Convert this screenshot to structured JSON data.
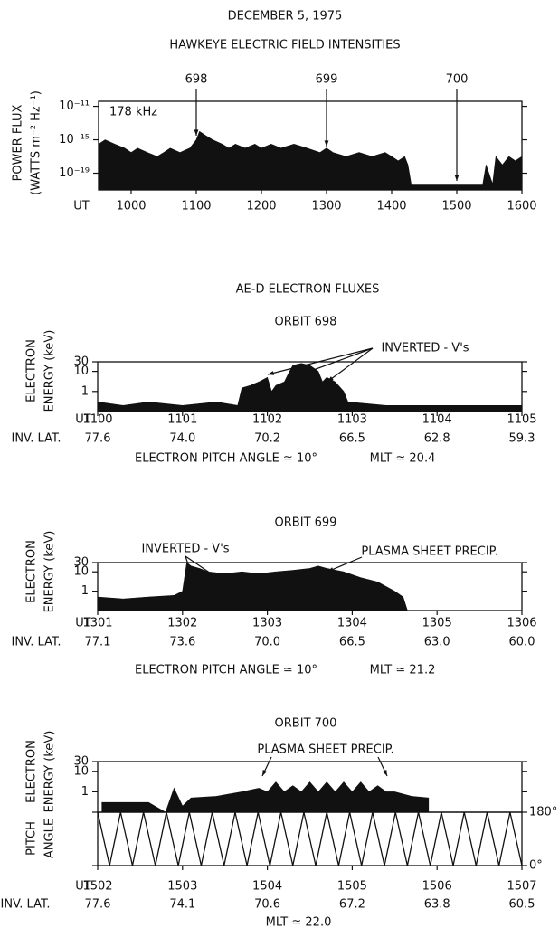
{
  "title": "DECEMBER 5, 1975",
  "chart_data": [
    {
      "type": "area",
      "title": "HAWKEYE ELECTRIC FIELD INTENSITIES",
      "inset_label": "178 kHz",
      "ylabel": [
        "POWER FLUX",
        "(WATTS m⁻² Hz⁻¹)"
      ],
      "xlabel": "UT",
      "log_y": true,
      "color": "#111111",
      "markers": [
        {
          "orbit": 698,
          "x": 1100
        },
        {
          "orbit": 699,
          "x": 1300
        },
        {
          "orbit": 700,
          "x": 1500
        }
      ],
      "xlim": [
        950,
        1600
      ],
      "xticks": [
        1000,
        1100,
        1200,
        1300,
        1400,
        1500,
        1600
      ],
      "ylim": [
        1e-21,
        4e-11
      ],
      "yticks": [
        {
          "value": 1e-19,
          "label": "10⁻¹⁹"
        },
        {
          "value": 1e-15,
          "label": "10⁻¹⁵"
        },
        {
          "value": 1e-11,
          "label": "10⁻¹¹"
        }
      ],
      "x": [
        950,
        960,
        975,
        990,
        1000,
        1010,
        1025,
        1040,
        1050,
        1060,
        1075,
        1090,
        1100,
        1105,
        1115,
        1125,
        1140,
        1150,
        1160,
        1175,
        1190,
        1200,
        1215,
        1230,
        1250,
        1270,
        1290,
        1300,
        1310,
        1330,
        1350,
        1370,
        1390,
        1400,
        1410,
        1420,
        1425,
        1430,
        1450,
        1500,
        1540,
        1545,
        1555,
        1560,
        1570,
        1580,
        1590,
        1600
      ],
      "values": [
        3e-16,
        1e-15,
        3e-16,
        1e-16,
        3e-17,
        1e-16,
        3e-17,
        1e-17,
        3e-17,
        1e-16,
        3e-17,
        1e-16,
        1e-15,
        1e-14,
        3e-15,
        1e-15,
        3e-16,
        1e-16,
        3e-16,
        1e-16,
        3e-16,
        1e-16,
        3e-16,
        1e-16,
        3e-16,
        1e-16,
        3e-17,
        1e-16,
        3e-17,
        1e-17,
        3e-17,
        1e-17,
        3e-17,
        1e-17,
        3e-18,
        1e-17,
        1e-18,
        5e-21,
        5e-21,
        5e-21,
        5e-21,
        1e-18,
        5e-21,
        1e-17,
        1e-18,
        1e-17,
        3e-18,
        1e-17
      ]
    },
    {
      "type": "area",
      "section_title": "AE-D ELECTRON FLUXES",
      "title": "ORBIT 698",
      "ylabel": [
        "ELECTRON",
        "ENERGY (keV)"
      ],
      "xlabel": "UT",
      "x2label": "INV. LAT.",
      "log_y": true,
      "color": "#111111",
      "annotations": [
        "INVERTED - V's"
      ],
      "notes": [
        "ELECTRON PITCH ANGLE ≃ 10°",
        "MLT ≃ 20.4"
      ],
      "xlim": [
        1100,
        1105
      ],
      "xticks": [
        1100,
        1101,
        1102,
        1103,
        1104,
        1105
      ],
      "x2_labels": [
        "77.6",
        "74.0",
        "70.2",
        "66.5",
        "62.8",
        "59.3"
      ],
      "ylim": [
        0.1,
        30
      ],
      "yticks": [
        1,
        10,
        30
      ],
      "x": [
        1100,
        1100.3,
        1100.6,
        1101,
        1101.4,
        1101.65,
        1101.7,
        1101.8,
        1101.9,
        1102,
        1102.05,
        1102.1,
        1102.2,
        1102.25,
        1102.3,
        1102.4,
        1102.5,
        1102.6,
        1102.65,
        1102.7,
        1102.8,
        1102.9,
        1102.95,
        1103.4,
        1103.8,
        1104.2,
        1104.6,
        1105
      ],
      "values": [
        0.3,
        0.2,
        0.3,
        0.2,
        0.3,
        0.2,
        1.5,
        2,
        3,
        5,
        1,
        2,
        3,
        8,
        20,
        25,
        20,
        10,
        3,
        5,
        3,
        1,
        0.3,
        0.2,
        0.2,
        0.2,
        0.2,
        0.2
      ]
    },
    {
      "type": "area",
      "title": "ORBIT 699",
      "ylabel": [
        "ELECTRON",
        "ENERGY (keV)"
      ],
      "xlabel": "UT",
      "x2label": "INV. LAT.",
      "log_y": true,
      "color": "#111111",
      "annotations": [
        "INVERTED - V's",
        "PLASMA SHEET PRECIP."
      ],
      "notes": [
        "ELECTRON PITCH ANGLE ≃ 10°",
        "MLT ≃ 21.2"
      ],
      "xlim": [
        1301,
        1306
      ],
      "xticks": [
        1301,
        1302,
        1303,
        1304,
        1305,
        1306
      ],
      "x2_labels": [
        "77.1",
        "73.6",
        "70.0",
        "66.5",
        "63.0",
        "60.0"
      ],
      "ylim": [
        0.1,
        30
      ],
      "yticks": [
        1,
        10,
        30
      ],
      "x": [
        1301,
        1301.3,
        1301.6,
        1301.9,
        1302,
        1302.05,
        1302.1,
        1302.2,
        1302.3,
        1302.5,
        1302.7,
        1302.9,
        1303.1,
        1303.3,
        1303.5,
        1303.6,
        1303.7,
        1303.9,
        1304.1,
        1304.3,
        1304.5,
        1304.6,
        1304.65
      ],
      "values": [
        0.5,
        0.4,
        0.5,
        0.6,
        1,
        30,
        20,
        15,
        10,
        8,
        10,
        8,
        10,
        12,
        15,
        20,
        15,
        10,
        5,
        3,
        1,
        0.5,
        0.1
      ]
    },
    {
      "type": "area",
      "title": "ORBIT 700",
      "ylabel": [
        "ELECTRON",
        "ENERGY (keV)"
      ],
      "log_y": true,
      "color": "#111111",
      "annotations": [
        "PLASMA SHEET PRECIP."
      ],
      "xlim": [
        1502,
        1507
      ],
      "ylim": [
        0.1,
        30
      ],
      "yticks": [
        1,
        10,
        30
      ],
      "x": [
        1502.05,
        1502.3,
        1502.6,
        1502.8,
        1502.9,
        1503.0,
        1503.1,
        1503.4,
        1503.7,
        1503.9,
        1504.0,
        1504.1,
        1504.2,
        1504.3,
        1504.4,
        1504.5,
        1504.6,
        1504.7,
        1504.8,
        1504.9,
        1505.0,
        1505.1,
        1505.2,
        1505.3,
        1505.4,
        1505.5,
        1505.7,
        1505.9
      ],
      "values": [
        0.3,
        0.3,
        0.3,
        0.1,
        1.5,
        0.2,
        0.5,
        0.6,
        1,
        1.5,
        1,
        3,
        1,
        2,
        1,
        3,
        1,
        3,
        1,
        3,
        1,
        3,
        1,
        2,
        1,
        1,
        0.6,
        0.5
      ]
    },
    {
      "type": "line",
      "ylabel": [
        "PITCH",
        "ANGLE"
      ],
      "xlabel": "UT",
      "x2label": "INV. LAT.",
      "color": "#111111",
      "notes": [
        "MLT ≃ 22.0"
      ],
      "xlim": [
        1502,
        1507
      ],
      "xticks": [
        1502,
        1503,
        1504,
        1505,
        1506,
        1507
      ],
      "x2_labels": [
        "77.6",
        "74.1",
        "70.6",
        "67.2",
        "63.8",
        "60.5"
      ],
      "ylim": [
        0,
        180
      ],
      "yticks": [
        {
          "value": 180,
          "label": "180°"
        },
        {
          "value": 0,
          "label": "0°"
        }
      ],
      "x": [
        1502,
        1502.14,
        1502.27,
        1502.41,
        1502.54,
        1502.68,
        1502.81,
        1502.95,
        1503.08,
        1503.22,
        1503.35,
        1503.49,
        1503.62,
        1503.76,
        1503.89,
        1504.03,
        1504.16,
        1504.3,
        1504.43,
        1504.57,
        1504.7,
        1504.84,
        1504.97,
        1505.11,
        1505.24,
        1505.38,
        1505.51,
        1505.65,
        1505.78,
        1505.92,
        1506.05,
        1506.19,
        1506.32,
        1506.46,
        1506.59,
        1506.73,
        1506.86,
        1507
      ],
      "values": [
        180,
        0,
        180,
        0,
        180,
        0,
        180,
        0,
        180,
        0,
        180,
        0,
        180,
        0,
        180,
        0,
        180,
        0,
        180,
        0,
        180,
        0,
        180,
        0,
        180,
        0,
        180,
        0,
        180,
        0,
        180,
        0,
        180,
        0,
        180,
        0,
        180,
        0
      ]
    }
  ]
}
